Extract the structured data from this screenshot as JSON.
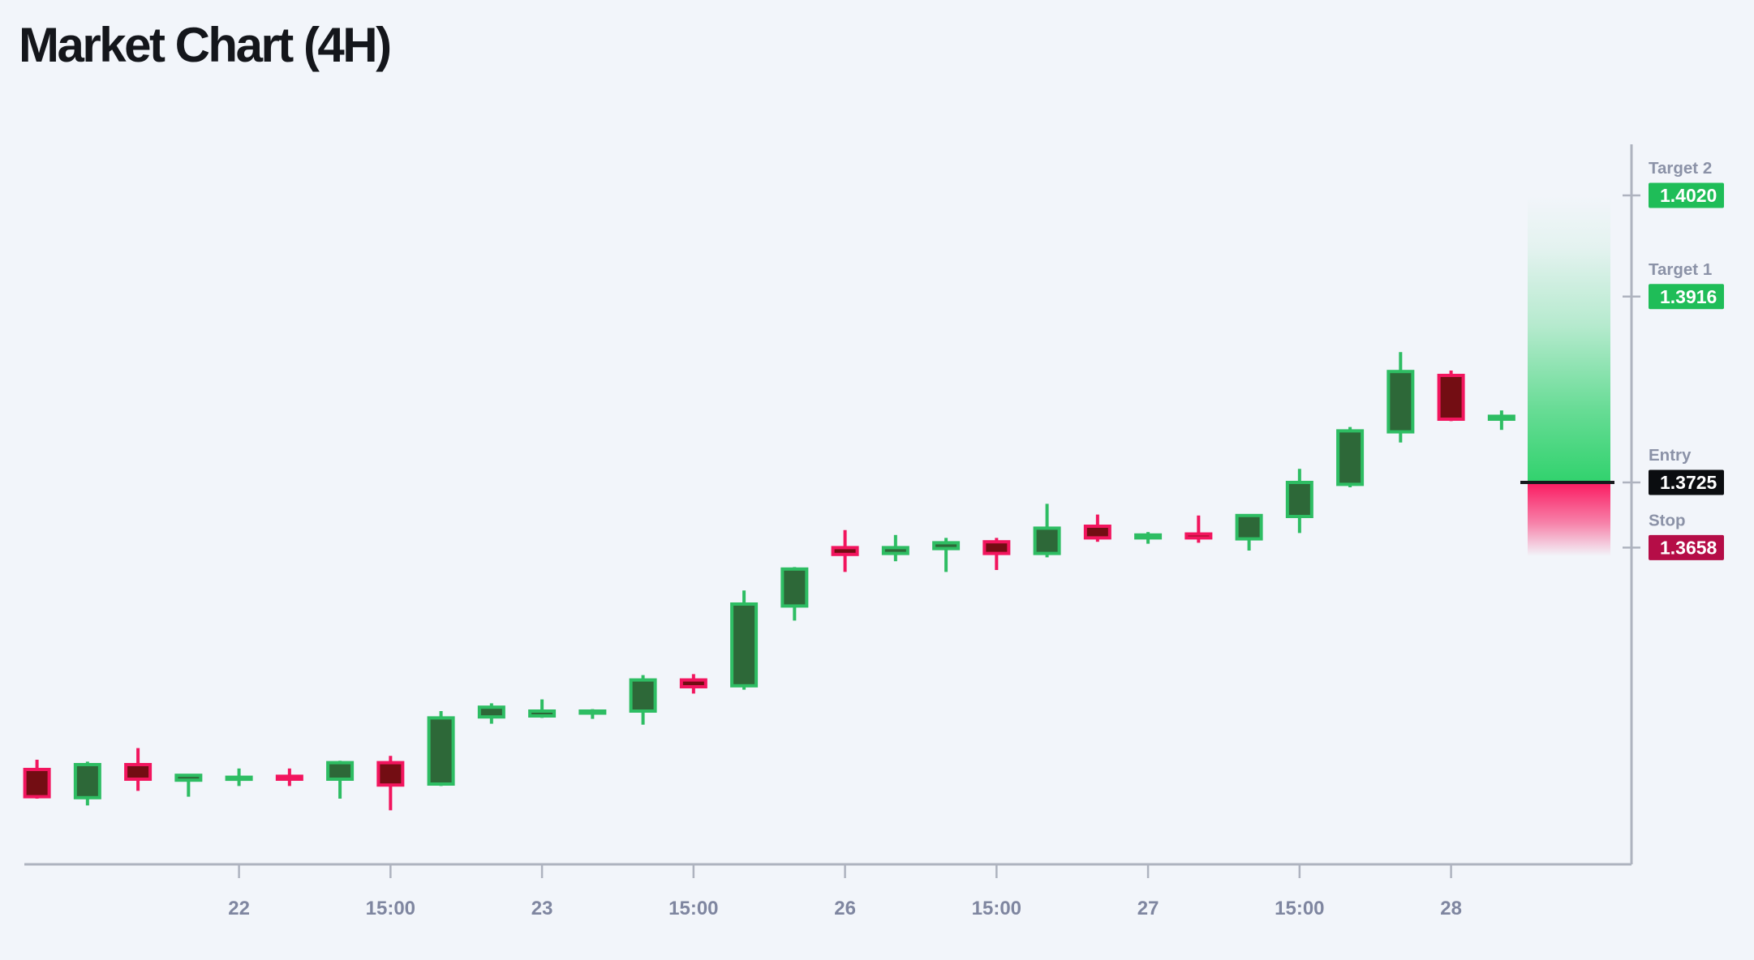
{
  "page": {
    "title": "Market Chart (4H)",
    "background": "#f2f5fa"
  },
  "chart_data": {
    "type": "candlestick",
    "title": "Market Chart (4H)",
    "timeframe": "4H",
    "ylim": [
      1.333,
      1.407
    ],
    "grid": false,
    "x_axis": {
      "labels": [
        "22",
        "15:00",
        "23",
        "15:00",
        "26",
        "15:00",
        "27",
        "15:00",
        "28"
      ],
      "bar_indices": [
        4,
        7,
        10,
        13,
        16,
        19,
        22,
        25,
        28
      ]
    },
    "bars": [
      {
        "o": 1.343,
        "h": 1.344,
        "l": 1.34,
        "c": 1.3402
      },
      {
        "o": 1.3401,
        "h": 1.3438,
        "l": 1.3393,
        "c": 1.3435
      },
      {
        "o": 1.3435,
        "h": 1.3452,
        "l": 1.3408,
        "c": 1.342
      },
      {
        "o": 1.3419,
        "h": 1.3425,
        "l": 1.3402,
        "c": 1.3424
      },
      {
        "o": 1.342,
        "h": 1.3431,
        "l": 1.3413,
        "c": 1.3422
      },
      {
        "o": 1.3423,
        "h": 1.3431,
        "l": 1.3413,
        "c": 1.342
      },
      {
        "o": 1.342,
        "h": 1.3439,
        "l": 1.34,
        "c": 1.3437
      },
      {
        "o": 1.3437,
        "h": 1.3444,
        "l": 1.3388,
        "c": 1.3414
      },
      {
        "o": 1.3415,
        "h": 1.349,
        "l": 1.3413,
        "c": 1.3483
      },
      {
        "o": 1.3484,
        "h": 1.3498,
        "l": 1.3477,
        "c": 1.3494
      },
      {
        "o": 1.3485,
        "h": 1.3502,
        "l": 1.3483,
        "c": 1.349
      },
      {
        "o": 1.3488,
        "h": 1.3492,
        "l": 1.3482,
        "c": 1.349
      },
      {
        "o": 1.349,
        "h": 1.3527,
        "l": 1.3476,
        "c": 1.3522
      },
      {
        "o": 1.3522,
        "h": 1.3528,
        "l": 1.3508,
        "c": 1.3515
      },
      {
        "o": 1.3516,
        "h": 1.3614,
        "l": 1.3512,
        "c": 1.36
      },
      {
        "o": 1.3598,
        "h": 1.3638,
        "l": 1.3583,
        "c": 1.3636
      },
      {
        "o": 1.3658,
        "h": 1.3676,
        "l": 1.3633,
        "c": 1.3651
      },
      {
        "o": 1.3652,
        "h": 1.3671,
        "l": 1.3644,
        "c": 1.3658
      },
      {
        "o": 1.3657,
        "h": 1.3668,
        "l": 1.3633,
        "c": 1.3663
      },
      {
        "o": 1.3664,
        "h": 1.3668,
        "l": 1.3635,
        "c": 1.3652
      },
      {
        "o": 1.3652,
        "h": 1.3703,
        "l": 1.3648,
        "c": 1.3678
      },
      {
        "o": 1.368,
        "h": 1.3692,
        "l": 1.3664,
        "c": 1.3668
      },
      {
        "o": 1.3668,
        "h": 1.3674,
        "l": 1.3662,
        "c": 1.3671
      },
      {
        "o": 1.3672,
        "h": 1.3691,
        "l": 1.3663,
        "c": 1.3668
      },
      {
        "o": 1.3667,
        "h": 1.3692,
        "l": 1.3655,
        "c": 1.3691
      },
      {
        "o": 1.369,
        "h": 1.3739,
        "l": 1.3673,
        "c": 1.3725
      },
      {
        "o": 1.3723,
        "h": 1.3782,
        "l": 1.372,
        "c": 1.3778
      },
      {
        "o": 1.3777,
        "h": 1.3859,
        "l": 1.3766,
        "c": 1.3839
      },
      {
        "o": 1.3835,
        "h": 1.384,
        "l": 1.3788,
        "c": 1.379
      },
      {
        "o": 1.379,
        "h": 1.3799,
        "l": 1.3779,
        "c": 1.3793
      }
    ],
    "annotations": {
      "target2": {
        "label": "Target 2",
        "value": "1.4020",
        "price": 1.402,
        "badge_color": "#1fbd58"
      },
      "target1": {
        "label": "Target 1",
        "value": "1.3916",
        "price": 1.3916,
        "badge_color": "#1fbd58"
      },
      "entry": {
        "label": "Entry",
        "value": "1.3725",
        "price": 1.3725,
        "badge_color": "#0b0d10"
      },
      "stop": {
        "label": "Stop",
        "value": "1.3658",
        "price": 1.3658,
        "badge_color": "#b50d47"
      }
    },
    "colors": {
      "bull_border": "#2ebd63",
      "bull_fill": "#2d6838",
      "bear_border": "#f2155e",
      "bear_fill": "#730d13",
      "zone_profit": "#2bd169",
      "zone_loss": "#fb0f59",
      "entry_line": "#17191d",
      "axis": "#aeb3bf",
      "tick_label": "#7f86a0",
      "label": "#8b92a7",
      "badge_text": "#ffffff"
    },
    "legend": null
  }
}
